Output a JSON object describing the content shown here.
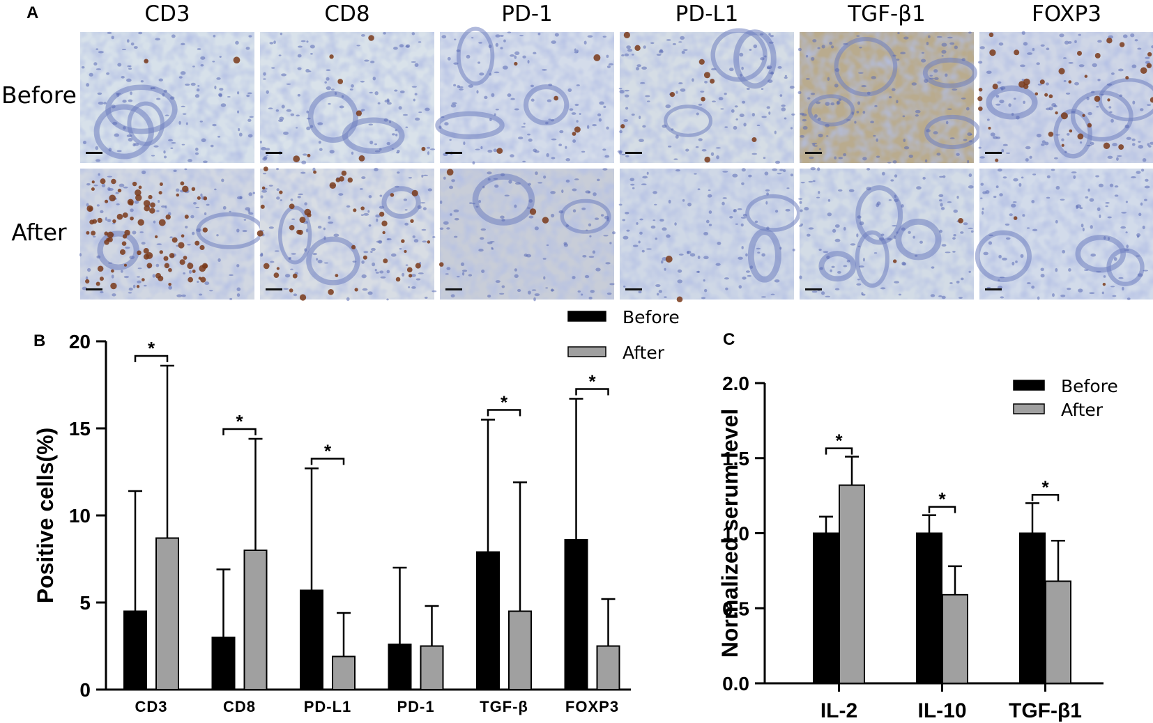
{
  "panel_a": {
    "letter": "A",
    "columns": [
      "CD3",
      "CD8",
      "PD-1",
      "PD-L1",
      "TGF-β1",
      "FOXP3"
    ],
    "rows": [
      "Before",
      "After"
    ],
    "colors": {
      "hematoxylin": "#8d9bd0",
      "background": "#d8e0ea",
      "dab": "#7a3a1a"
    }
  },
  "chart_data": [
    {
      "panel": "B",
      "type": "bar",
      "ylabel": "Positive cells(%)",
      "ylim": [
        0,
        20
      ],
      "yticks": [
        0,
        5,
        10,
        15,
        20
      ],
      "categories": [
        "CD3",
        "CD8",
        "PD-L1",
        "PD-1",
        "TGF-β",
        "FOXP3"
      ],
      "legend": {
        "position": "top-right"
      },
      "series": [
        {
          "name": "Before",
          "color": "#000000",
          "values": [
            4.5,
            3.0,
            5.7,
            2.6,
            7.9,
            8.6
          ],
          "error": [
            6.9,
            3.9,
            7.0,
            4.4,
            7.6,
            8.1
          ]
        },
        {
          "name": "After",
          "color": "#a0a0a0",
          "values": [
            8.7,
            8.0,
            1.9,
            2.5,
            4.5,
            2.5
          ],
          "error": [
            9.9,
            6.4,
            2.5,
            2.3,
            7.4,
            2.7
          ]
        }
      ],
      "significance": [
        {
          "category": 0,
          "label": "*"
        },
        {
          "category": 1,
          "label": "*"
        },
        {
          "category": 2,
          "label": "*"
        },
        {
          "category": 4,
          "label": "*"
        },
        {
          "category": 5,
          "label": "*"
        }
      ]
    },
    {
      "panel": "C",
      "type": "bar",
      "ylabel": "Normalized serum level",
      "ylim": [
        0,
        2.0
      ],
      "yticks": [
        "0.0",
        "0.5",
        "1.0",
        "1.5",
        "2.0"
      ],
      "categories": [
        "IL-2",
        "IL-10",
        "TGF-β1"
      ],
      "legend": {
        "position": "top-right"
      },
      "series": [
        {
          "name": "Before",
          "color": "#000000",
          "values": [
            1.0,
            1.0,
            1.0
          ],
          "error": [
            0.11,
            0.12,
            0.2
          ]
        },
        {
          "name": "After",
          "color": "#a0a0a0",
          "values": [
            1.32,
            0.59,
            0.68
          ],
          "error": [
            0.19,
            0.19,
            0.27
          ]
        }
      ],
      "significance": [
        {
          "category": 0,
          "label": "*"
        },
        {
          "category": 1,
          "label": "*"
        },
        {
          "category": 2,
          "label": "*"
        }
      ]
    }
  ]
}
